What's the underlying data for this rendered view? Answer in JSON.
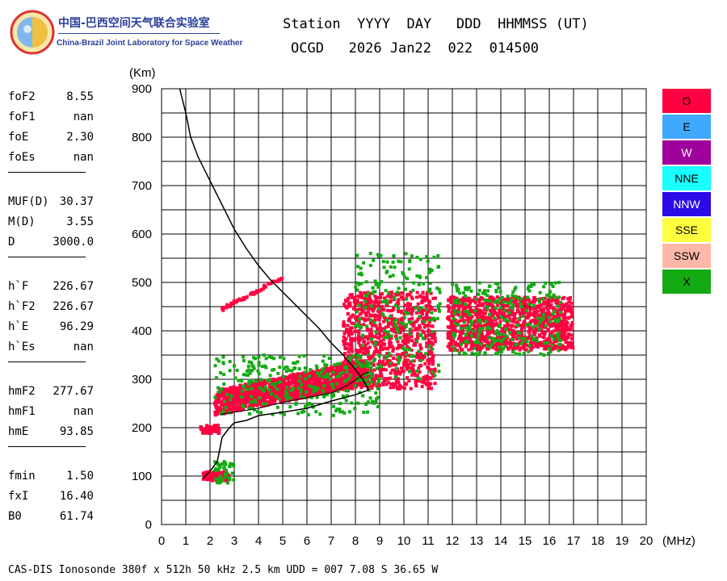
{
  "logo": {
    "title_cn": "中国-巴西空间天气联合实验室",
    "title_en": "China-Brazil Joint Laboratory for Space Weather",
    "icon": "globe-logo-icon"
  },
  "header": {
    "line1": "Station  YYYY  DAY   DDD  HHMMSS (UT)",
    "line2": "OCGD   2026 Jan22  022  014500"
  },
  "params": {
    "groups": [
      [
        {
          "label": "foF2",
          "value": "8.55"
        },
        {
          "label": "foF1",
          "value": "nan"
        },
        {
          "label": "foE",
          "value": "2.30"
        },
        {
          "label": "foEs",
          "value": "nan"
        }
      ],
      [
        {
          "label": "MUF(D)",
          "value": "30.37"
        },
        {
          "label": "M(D)",
          "value": "3.55"
        },
        {
          "label": "D",
          "value": "3000.0"
        }
      ],
      [
        {
          "label": "h`F",
          "value": "226.67"
        },
        {
          "label": "h`F2",
          "value": "226.67"
        },
        {
          "label": "h`E",
          "value": "96.29"
        },
        {
          "label": "h`Es",
          "value": "nan"
        }
      ],
      [
        {
          "label": "hmF2",
          "value": "277.67"
        },
        {
          "label": "hmF1",
          "value": "nan"
        },
        {
          "label": "hmE",
          "value": "93.85"
        }
      ],
      [
        {
          "label": "fmin",
          "value": "1.50"
        },
        {
          "label": "fxI",
          "value": "16.40"
        },
        {
          "label": "B0",
          "value": "61.74"
        }
      ]
    ]
  },
  "legend": [
    {
      "label": "O",
      "color": "#ff0040"
    },
    {
      "label": "E",
      "color": "#3fa9ff"
    },
    {
      "label": "W",
      "color": "#a0009c"
    },
    {
      "label": "NNE",
      "color": "#19ffff"
    },
    {
      "label": "NNW",
      "color": "#2a0ae6"
    },
    {
      "label": "SSE",
      "color": "#ffff40"
    },
    {
      "label": "SSW",
      "color": "#ffb8a8"
    },
    {
      "label": "X",
      "color": "#14aa14"
    }
  ],
  "footer": "CAS-DIS Ionosonde 380f x 512h 50 kHz 2.5 km UDD = 007 7.08 S 36.65 W",
  "chart_data": {
    "type": "scatter",
    "xlabel": "(MHz)",
    "ylabel": "(Km)",
    "xlim": [
      0,
      20
    ],
    "ylim": [
      0,
      900
    ],
    "xticks": [
      0,
      1,
      2,
      3,
      4,
      5,
      6,
      7,
      8,
      9,
      10,
      11,
      12,
      13,
      14,
      15,
      16,
      17,
      18,
      19,
      20
    ],
    "yticks": [
      0,
      100,
      200,
      300,
      400,
      500,
      600,
      700,
      800,
      900
    ],
    "grid": true,
    "profile_curve": {
      "x": [
        0.75,
        1.0,
        1.2,
        1.5,
        2.0,
        2.5,
        3.0,
        3.5,
        4.0,
        4.5,
        5.0,
        5.5,
        6.0,
        6.5,
        7.0,
        7.5,
        8.0,
        8.3,
        8.55
      ],
      "y": [
        900,
        850,
        800,
        760,
        710,
        660,
        610,
        570,
        535,
        505,
        480,
        455,
        430,
        405,
        375,
        350,
        320,
        300,
        278
      ]
    },
    "lower_curve": {
      "x": [
        1.7,
        2.0,
        2.3,
        2.5,
        2.8,
        3.0,
        3.5,
        4.0,
        5.0,
        6.0,
        7.0,
        8.0,
        8.55
      ],
      "y": [
        95,
        110,
        130,
        180,
        200,
        210,
        215,
        225,
        232,
        240,
        255,
        268,
        278
      ]
    },
    "trace_curve": {
      "x": [
        2.4,
        3.0,
        4.0,
        5.0,
        6.0,
        7.0,
        7.5,
        8.0,
        8.3,
        8.55
      ],
      "y": [
        227,
        232,
        240,
        252,
        262,
        272,
        283,
        298,
        310,
        315
      ]
    },
    "echo_clusters": [
      {
        "color": "#ff0040",
        "x": [
          2.2,
          8.5
        ],
        "y": [
          225,
          330
        ],
        "n": 1400
      },
      {
        "color": "#ff0040",
        "x": [
          7.5,
          11.3
        ],
        "y": [
          280,
          480
        ],
        "n": 900
      },
      {
        "color": "#ff0040",
        "x": [
          11.8,
          17.0
        ],
        "y": [
          360,
          470
        ],
        "n": 1100
      },
      {
        "color": "#ff0040",
        "x": [
          1.7,
          2.8
        ],
        "y": [
          90,
          110
        ],
        "n": 90
      },
      {
        "color": "#ff0040",
        "x": [
          1.6,
          2.4
        ],
        "y": [
          188,
          205
        ],
        "n": 60
      },
      {
        "color": "#ff0040",
        "x": [
          2.5,
          5.0
        ],
        "y": [
          445,
          510
        ],
        "n": 60
      },
      {
        "color": "#14aa14",
        "x": [
          2.2,
          9.0
        ],
        "y": [
          225,
          350
        ],
        "n": 300
      },
      {
        "color": "#14aa14",
        "x": [
          8.0,
          11.5
        ],
        "y": [
          300,
          560
        ],
        "n": 220
      },
      {
        "color": "#14aa14",
        "x": [
          12.0,
          16.5
        ],
        "y": [
          350,
          500
        ],
        "n": 260
      },
      {
        "color": "#14aa14",
        "x": [
          2.2,
          3.0
        ],
        "y": [
          85,
          130
        ],
        "n": 40
      }
    ]
  }
}
